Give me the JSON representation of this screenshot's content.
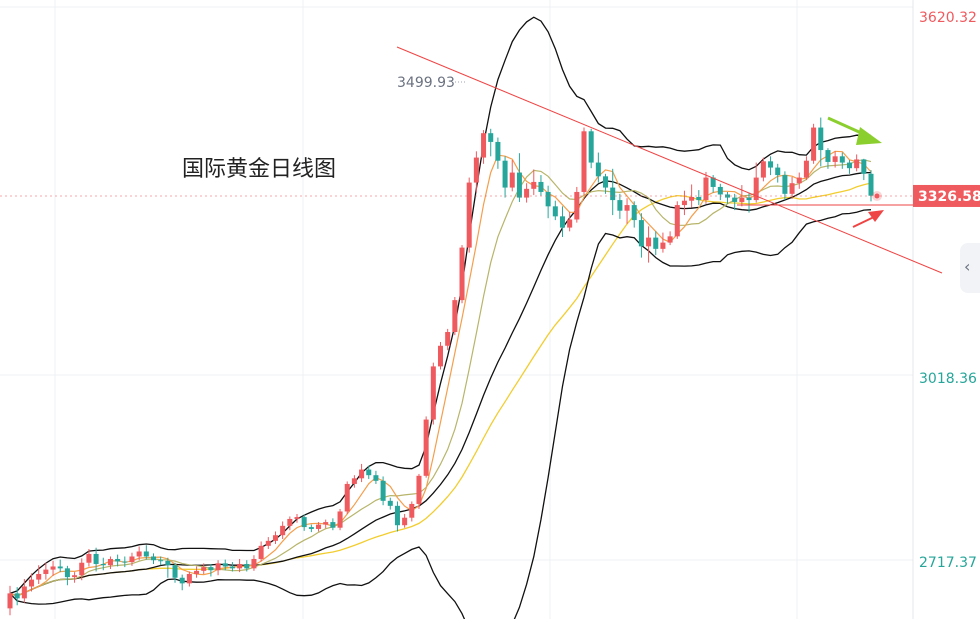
{
  "chart_data": {
    "type": "candlestick",
    "title": "国际黄金日线图",
    "y_axis_labels": [
      "3620.32",
      "3018.36",
      "2717.37"
    ],
    "ylim": [
      2650,
      3640
    ],
    "current_price": "3326.58",
    "high_annotation": "3499.93",
    "grid": true,
    "candles": [
      [
        2667,
        2691,
        2656,
        2703
      ],
      [
        2691,
        2683,
        2672,
        2701
      ],
      [
        2683,
        2702,
        2676,
        2714
      ],
      [
        2702,
        2713,
        2694,
        2723
      ],
      [
        2713,
        2722,
        2706,
        2736
      ],
      [
        2722,
        2729,
        2713,
        2740
      ],
      [
        2729,
        2734,
        2719,
        2743
      ],
      [
        2734,
        2731,
        2725,
        2745
      ],
      [
        2731,
        2717,
        2704,
        2735
      ],
      [
        2717,
        2720,
        2708,
        2725
      ],
      [
        2720,
        2740,
        2712,
        2747
      ],
      [
        2740,
        2754,
        2734,
        2762
      ],
      [
        2754,
        2738,
        2726,
        2764
      ],
      [
        2738,
        2736,
        2728,
        2748
      ],
      [
        2736,
        2746,
        2730,
        2750
      ],
      [
        2746,
        2742,
        2734,
        2753
      ],
      [
        2742,
        2741,
        2733,
        2750
      ],
      [
        2741,
        2750,
        2735,
        2756
      ],
      [
        2750,
        2758,
        2744,
        2766
      ],
      [
        2758,
        2750,
        2745,
        2768
      ],
      [
        2750,
        2744,
        2738,
        2755
      ],
      [
        2744,
        2743,
        2736,
        2750
      ],
      [
        2743,
        2736,
        2716,
        2748
      ],
      [
        2736,
        2716,
        2708,
        2740
      ],
      [
        2716,
        2707,
        2696,
        2721
      ],
      [
        2707,
        2722,
        2702,
        2726
      ],
      [
        2722,
        2727,
        2716,
        2734
      ],
      [
        2727,
        2733,
        2722,
        2739
      ],
      [
        2733,
        2728,
        2718,
        2738
      ],
      [
        2728,
        2739,
        2720,
        2744
      ],
      [
        2739,
        2734,
        2728,
        2745
      ],
      [
        2734,
        2731,
        2726,
        2741
      ],
      [
        2731,
        2738,
        2725,
        2746
      ],
      [
        2738,
        2731,
        2726,
        2744
      ],
      [
        2731,
        2746,
        2727,
        2752
      ],
      [
        2746,
        2767,
        2742,
        2774
      ],
      [
        2767,
        2775,
        2762,
        2781
      ],
      [
        2775,
        2784,
        2770,
        2790
      ],
      [
        2784,
        2799,
        2778,
        2806
      ],
      [
        2799,
        2810,
        2792,
        2814
      ],
      [
        2810,
        2813,
        2804,
        2818
      ],
      [
        2813,
        2797,
        2791,
        2817
      ],
      [
        2797,
        2794,
        2789,
        2801
      ],
      [
        2794,
        2801,
        2790,
        2805
      ],
      [
        2801,
        2805,
        2795,
        2809
      ],
      [
        2805,
        2796,
        2792,
        2811
      ],
      [
        2796,
        2822,
        2792,
        2826
      ],
      [
        2822,
        2866,
        2818,
        2870
      ],
      [
        2866,
        2875,
        2860,
        2880
      ],
      [
        2875,
        2889,
        2869,
        2898
      ],
      [
        2889,
        2880,
        2874,
        2895
      ],
      [
        2880,
        2871,
        2866,
        2887
      ],
      [
        2871,
        2839,
        2832,
        2878
      ],
      [
        2839,
        2831,
        2825,
        2844
      ],
      [
        2831,
        2800,
        2790,
        2838
      ],
      [
        2800,
        2812,
        2796,
        2818
      ],
      [
        2812,
        2834,
        2806,
        2838
      ],
      [
        2834,
        2879,
        2826,
        2882
      ],
      [
        2879,
        2969,
        2876,
        2974
      ],
      [
        2969,
        3054,
        2961,
        3060
      ],
      [
        3054,
        3087,
        3049,
        3093
      ],
      [
        3087,
        3109,
        3080,
        3114
      ],
      [
        3109,
        3160,
        3104,
        3165
      ],
      [
        3160,
        3244,
        3155,
        3248
      ],
      [
        3244,
        3348,
        3236,
        3356
      ],
      [
        3348,
        3388,
        3332,
        3398
      ],
      [
        3388,
        3427,
        3378,
        3432
      ],
      [
        3427,
        3413,
        3390,
        3434
      ],
      [
        3413,
        3383,
        3370,
        3420
      ],
      [
        3383,
        3340,
        3324,
        3390
      ],
      [
        3340,
        3364,
        3334,
        3384
      ],
      [
        3364,
        3324,
        3317,
        3395
      ],
      [
        3324,
        3338,
        3316,
        3347
      ],
      [
        3338,
        3349,
        3328,
        3369
      ],
      [
        3349,
        3333,
        3327,
        3360
      ],
      [
        3333,
        3310,
        3291,
        3343
      ],
      [
        3310,
        3294,
        3288,
        3319
      ],
      [
        3294,
        3276,
        3261,
        3310
      ],
      [
        3276,
        3289,
        3270,
        3301
      ],
      [
        3289,
        3333,
        3284,
        3341
      ],
      [
        3333,
        3430,
        3328,
        3436
      ],
      [
        3430,
        3380,
        3371,
        3434
      ],
      [
        3380,
        3358,
        3348,
        3396
      ],
      [
        3358,
        3340,
        3330,
        3362
      ],
      [
        3340,
        3320,
        3296,
        3370
      ],
      [
        3320,
        3303,
        3290,
        3330
      ],
      [
        3303,
        3312,
        3282,
        3323
      ],
      [
        3312,
        3288,
        3276,
        3318
      ],
      [
        3288,
        3246,
        3228,
        3299
      ],
      [
        3246,
        3260,
        3220,
        3278
      ],
      [
        3260,
        3242,
        3232,
        3270
      ],
      [
        3242,
        3252,
        3236,
        3268
      ],
      [
        3252,
        3262,
        3248,
        3270
      ],
      [
        3262,
        3312,
        3258,
        3318
      ],
      [
        3312,
        3319,
        3296,
        3335
      ],
      [
        3319,
        3325,
        3308,
        3345
      ],
      [
        3325,
        3320,
        3312,
        3336
      ],
      [
        3320,
        3356,
        3314,
        3365
      ],
      [
        3356,
        3341,
        3332,
        3360
      ],
      [
        3341,
        3329,
        3320,
        3346
      ],
      [
        3329,
        3324,
        3314,
        3333
      ],
      [
        3324,
        3317,
        3304,
        3330
      ],
      [
        3317,
        3324,
        3310,
        3344
      ],
      [
        3324,
        3320,
        3300,
        3332
      ],
      [
        3320,
        3356,
        3316,
        3380
      ],
      [
        3356,
        3382,
        3350,
        3388
      ],
      [
        3382,
        3372,
        3360,
        3390
      ],
      [
        3372,
        3360,
        3348,
        3378
      ],
      [
        3360,
        3330,
        3320,
        3366
      ],
      [
        3330,
        3347,
        3322,
        3357
      ],
      [
        3347,
        3356,
        3338,
        3364
      ],
      [
        3356,
        3383,
        3352,
        3390
      ],
      [
        3383,
        3436,
        3378,
        3442
      ],
      [
        3436,
        3400,
        3374,
        3452
      ],
      [
        3400,
        3381,
        3370,
        3403
      ],
      [
        3381,
        3390,
        3372,
        3398
      ],
      [
        3390,
        3380,
        3370,
        3396
      ],
      [
        3380,
        3371,
        3362,
        3384
      ],
      [
        3371,
        3385,
        3366,
        3393
      ],
      [
        3385,
        3362,
        3352,
        3386
      ],
      [
        3362,
        3327,
        3318,
        3368
      ]
    ]
  },
  "ui": {
    "side_handle_icon": "chevron-left-icon",
    "side_handle_glyph": "‹"
  },
  "colors": {
    "up": "#ef5a5f",
    "down": "#26a69a",
    "axis_text_red": "#ef5a5f",
    "axis_text_green": "#26a69a",
    "price_tag_bg": "#ef5a5f",
    "trend_line": "#ef4444",
    "bands": "#111111",
    "ma_orange": "#f59e4b",
    "ma_olive": "#b7b56a",
    "ma_yellow": "#f2cd2f",
    "arrow_green": "#8bcf2e",
    "arrow_red": "#ef4444"
  }
}
